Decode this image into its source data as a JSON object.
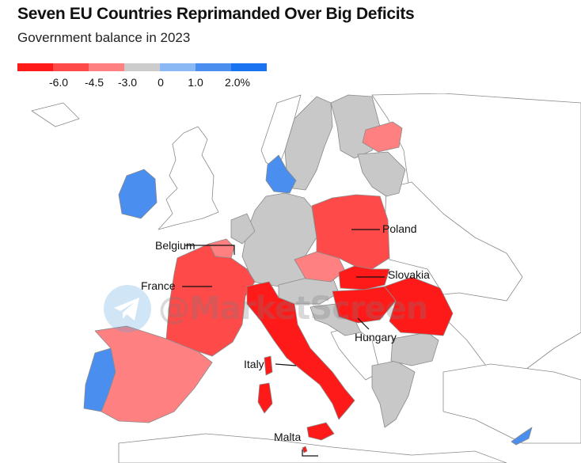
{
  "header": {
    "title": "Seven EU Countries Reprimanded Over Big Deficits",
    "subtitle": "Government balance in 2023"
  },
  "legend": {
    "colors": [
      "#ff1a1a",
      "#ff4a4a",
      "#ff8080",
      "#cccccc",
      "#8ab8f5",
      "#4a8ff0",
      "#1a73f0"
    ],
    "ticks": [
      "-6.0",
      "-4.5",
      "-3.0",
      "0",
      "1.0",
      "2.0%"
    ]
  },
  "map": {
    "colors": {
      "deep_red": "#ff1a1a",
      "red": "#ff4a4a",
      "light_red": "#ff8080",
      "gray": "#c8c8c8",
      "blue": "#4a8ff0",
      "non_eu": "#ffffff",
      "border": "#8a8a8a"
    },
    "labels": {
      "belgium": "Belgium",
      "france": "France",
      "poland": "Poland",
      "slovakia": "Slovakia",
      "hungary": "Hungary",
      "italy": "Italy",
      "malta": "Malta"
    }
  },
  "watermark": {
    "text": "@MarketScreen",
    "icon": "telegram-icon"
  }
}
